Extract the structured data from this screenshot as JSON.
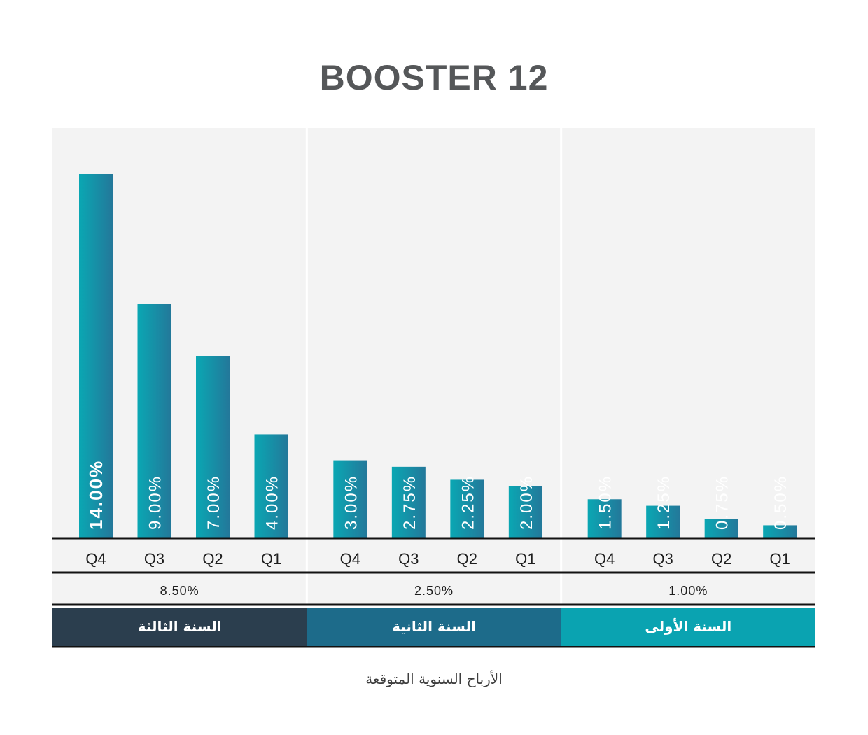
{
  "title": "BOOSTER 12",
  "footer_label": "الأرباح السنوية المتوقعة",
  "colors": {
    "panel_bg": "#f3f3f3",
    "bar_start": "#0aa7b3",
    "bar_end": "#23789a",
    "year_one": "#0aa3b1",
    "year_two": "#1d6b8a",
    "year_three": "#2b3e4e"
  },
  "chart_data": {
    "type": "bar",
    "title": "BOOSTER 12",
    "ylim": [
      0,
      14
    ],
    "grid": false,
    "groups": [
      {
        "year_label": "السنة الثالثة",
        "annual_rate": "8.50%",
        "color_key": "year_three",
        "categories": [
          "Q4",
          "Q3",
          "Q2",
          "Q1"
        ],
        "values": [
          14.0,
          9.0,
          7.0,
          4.0
        ],
        "labels": [
          "14.00%",
          "9.00%",
          "7.00%",
          "4.00%"
        ]
      },
      {
        "year_label": "السنة الثانية",
        "annual_rate": "2.50%",
        "color_key": "year_two",
        "categories": [
          "Q4",
          "Q3",
          "Q2",
          "Q1"
        ],
        "values": [
          3.0,
          2.75,
          2.25,
          2.0
        ],
        "labels": [
          "3.00%",
          "2.75%",
          "2.25%",
          "2.00%"
        ]
      },
      {
        "year_label": "السنة الأولى",
        "annual_rate": "1.00%",
        "color_key": "year_one",
        "categories": [
          "Q4",
          "Q3",
          "Q2",
          "Q1"
        ],
        "values": [
          1.5,
          1.25,
          0.75,
          0.5
        ],
        "labels": [
          "1.50%",
          "1.25%",
          "0.75%",
          "0.50%"
        ]
      }
    ]
  }
}
